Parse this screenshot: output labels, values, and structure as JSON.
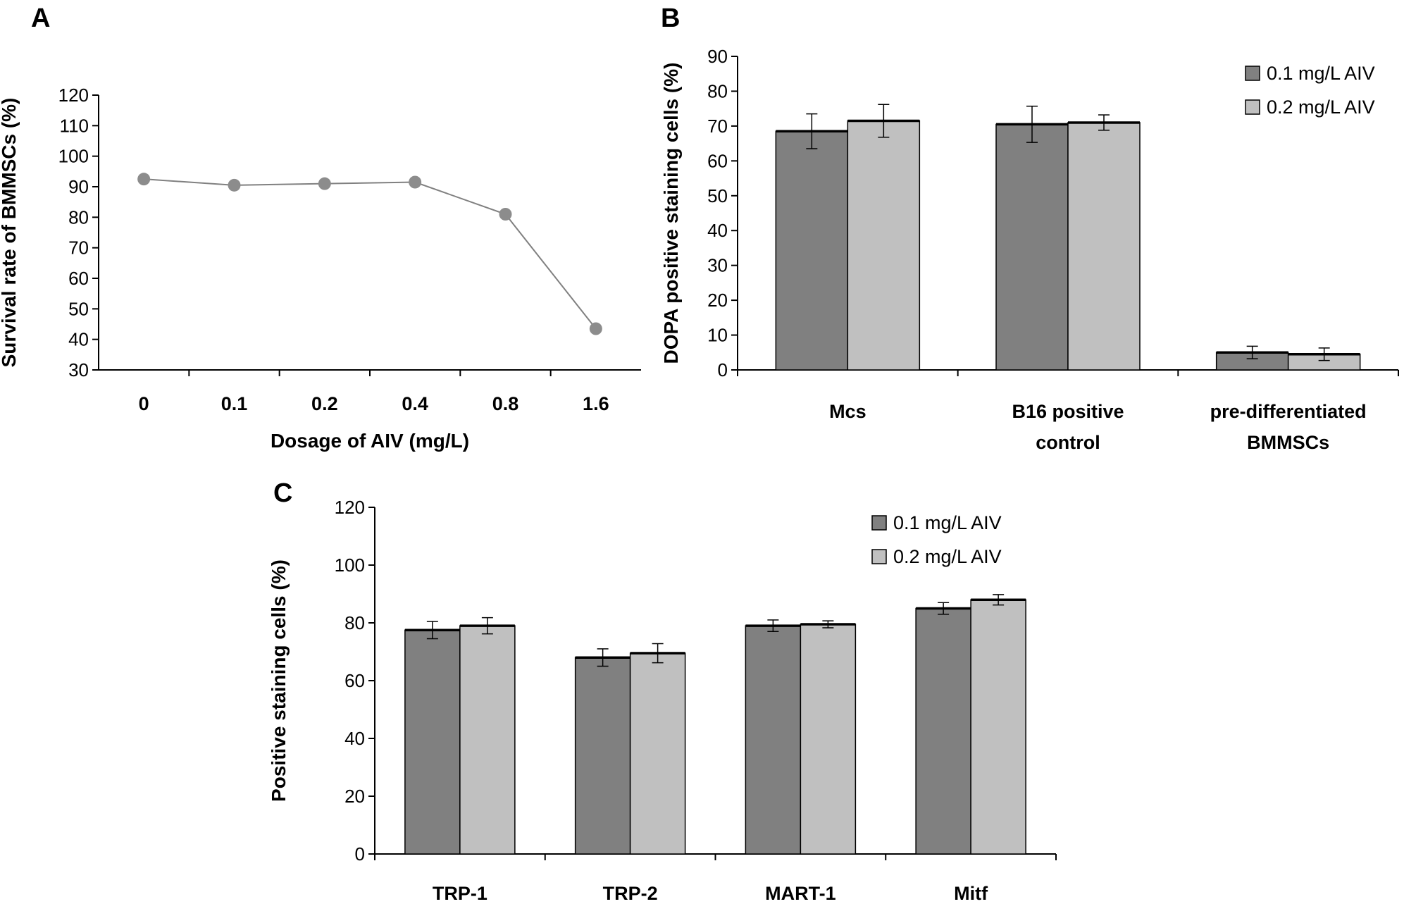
{
  "chart_data": [
    {
      "panel": "A",
      "type": "line",
      "title": "",
      "xlabel": "Dosage of AIV (mg/L)",
      "ylabel": "Survival rate of BMMSCs (%)",
      "categories": [
        "0",
        "0.1",
        "0.2",
        "0.4",
        "0.8",
        "1.6"
      ],
      "values": [
        92.5,
        90.5,
        91,
        91.5,
        81,
        43.5
      ],
      "ylim": [
        30,
        120
      ],
      "yticks": [
        30,
        40,
        50,
        60,
        70,
        80,
        90,
        100,
        110,
        120
      ],
      "colors": {
        "line": "#808080",
        "marker": "#8c8c8c"
      }
    },
    {
      "panel": "B",
      "type": "bar",
      "title": "",
      "xlabel": "",
      "ylabel": "DOPA positive staining cells (%)",
      "categories": [
        "Mcs",
        "B16 positive control",
        "pre-differentiated BMMSCs"
      ],
      "category_lines": [
        [
          "Mcs"
        ],
        [
          "B16 positive",
          "control"
        ],
        [
          "pre-differentiated",
          "BMMSCs"
        ]
      ],
      "series": [
        {
          "name": "0.1 mg/L AIV",
          "values": [
            68.5,
            70.5,
            5
          ],
          "errors": [
            5,
            5.2,
            1.8
          ],
          "color": "#808080"
        },
        {
          "name": "0.2 mg/L AIV",
          "values": [
            71.5,
            71,
            4.5
          ],
          "errors": [
            4.7,
            2.2,
            1.8
          ],
          "color": "#c0c0c0"
        }
      ],
      "ylim": [
        0,
        90
      ],
      "yticks": [
        0,
        10,
        20,
        30,
        40,
        50,
        60,
        70,
        80,
        90
      ],
      "legend": "top-right"
    },
    {
      "panel": "C",
      "type": "bar",
      "title": "",
      "xlabel": "",
      "ylabel": "Positive staining cells (%)",
      "categories": [
        "TRP-1",
        "TRP-2",
        "MART-1",
        "Mitf"
      ],
      "category_lines": [
        [
          "TRP-1"
        ],
        [
          "TRP-2"
        ],
        [
          "MART-1"
        ],
        [
          "Mitf"
        ]
      ],
      "series": [
        {
          "name": "0.1 mg/L AIV",
          "values": [
            77.5,
            68,
            79,
            85
          ],
          "errors": [
            3,
            3,
            2,
            2
          ],
          "color": "#808080"
        },
        {
          "name": "0.2 mg/L AIV",
          "values": [
            79,
            69.5,
            79.5,
            88
          ],
          "errors": [
            2.8,
            3.3,
            1.2,
            1.8
          ],
          "color": "#c0c0c0"
        }
      ],
      "ylim": [
        0,
        120
      ],
      "yticks": [
        0,
        20,
        40,
        60,
        80,
        100,
        120
      ],
      "legend": "top-right"
    }
  ]
}
